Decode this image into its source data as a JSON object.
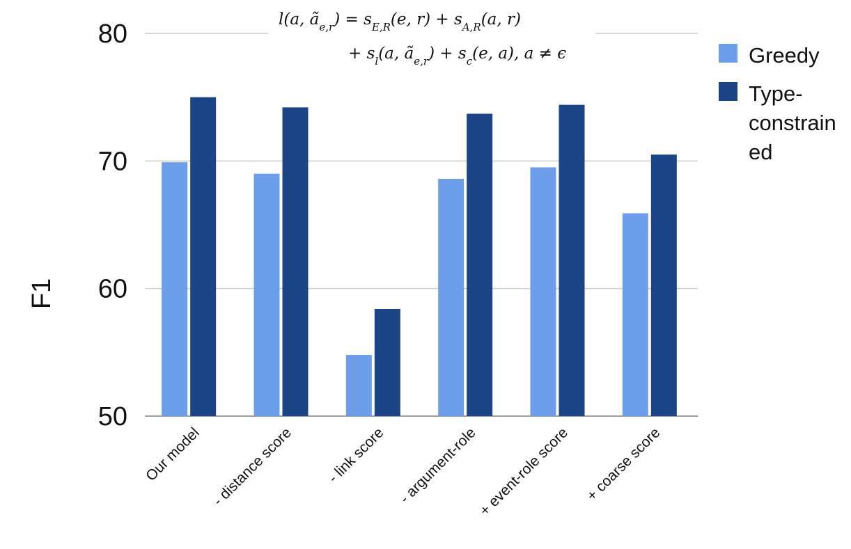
{
  "chart_data": {
    "type": "bar",
    "categories": [
      "Our model",
      "- distance score",
      "- link score",
      "- argument-role",
      "+ event-role score",
      "+ coarse score"
    ],
    "series": [
      {
        "name": "Greedy",
        "color": "#6d9eeb",
        "values": [
          69.9,
          69.0,
          54.8,
          68.6,
          69.5,
          65.9
        ]
      },
      {
        "name": "Type-constrained",
        "color": "#1c4587",
        "values": [
          75.0,
          74.2,
          58.4,
          73.7,
          74.4,
          70.5
        ]
      }
    ],
    "ylabel": "F1",
    "ylim": [
      50,
      80
    ],
    "yticks": [
      "50",
      "60",
      "70",
      "80"
    ],
    "grid": true,
    "legend_position": "top-right",
    "legend_lines": [
      [
        "Greedy"
      ],
      [
        "Type-",
        "constrain",
        "ed"
      ]
    ],
    "annotation": {
      "line1": "l(a, ã_{e,r}) = s_{E,R}(e, r) + s_{A,R}(a, r)",
      "line2": "+ s_l(a, ã_{e,r}) + s_c(e, a),   a ≠ ϵ"
    }
  }
}
